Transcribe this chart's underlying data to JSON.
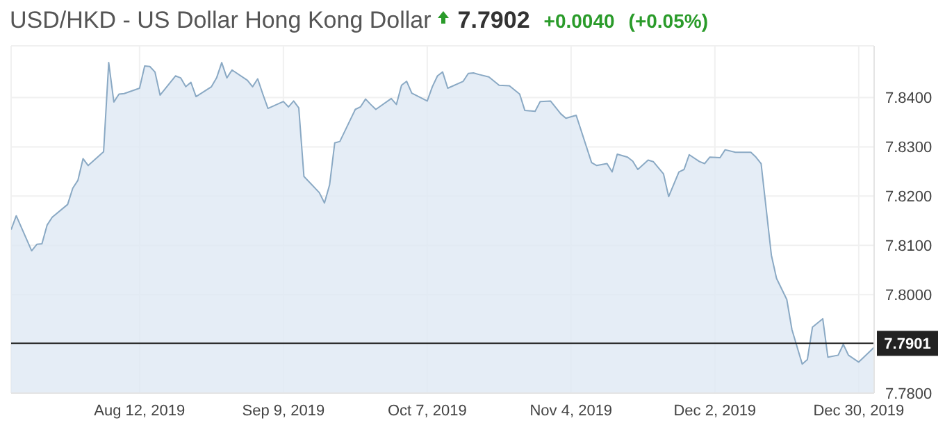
{
  "chart_data": {
    "type": "area",
    "title": "USD/HKD - US Dollar Hong Kong Dollar",
    "annotations": [
      "7.7902",
      "+0.0040",
      "(+0.05%)"
    ],
    "x": [
      "2019-07-18",
      "2019-07-19",
      "2019-07-22",
      "2019-07-23",
      "2019-07-24",
      "2019-07-25",
      "2019-07-26",
      "2019-07-29",
      "2019-07-30",
      "2019-07-31",
      "2019-08-01",
      "2019-08-02",
      "2019-08-05",
      "2019-08-06",
      "2019-08-07",
      "2019-08-08",
      "2019-08-09",
      "2019-08-12",
      "2019-08-13",
      "2019-08-14",
      "2019-08-15",
      "2019-08-16",
      "2019-08-19",
      "2019-08-20",
      "2019-08-21",
      "2019-08-22",
      "2019-08-23",
      "2019-08-26",
      "2019-08-27",
      "2019-08-28",
      "2019-08-29",
      "2019-08-30",
      "2019-09-02",
      "2019-09-03",
      "2019-09-04",
      "2019-09-05",
      "2019-09-06",
      "2019-09-09",
      "2019-09-10",
      "2019-09-11",
      "2019-09-12",
      "2019-09-13",
      "2019-09-16",
      "2019-09-17",
      "2019-09-18",
      "2019-09-19",
      "2019-09-20",
      "2019-09-23",
      "2019-09-24",
      "2019-09-25",
      "2019-09-26",
      "2019-09-27",
      "2019-09-30",
      "2019-10-01",
      "2019-10-02",
      "2019-10-03",
      "2019-10-04",
      "2019-10-07",
      "2019-10-08",
      "2019-10-09",
      "2019-10-10",
      "2019-10-11",
      "2019-10-14",
      "2019-10-15",
      "2019-10-16",
      "2019-10-17",
      "2019-10-19",
      "2019-10-21",
      "2019-10-23",
      "2019-10-25",
      "2019-10-26",
      "2019-10-28",
      "2019-10-29",
      "2019-10-31",
      "2019-11-02",
      "2019-11-03",
      "2019-11-05",
      "2019-11-08",
      "2019-11-09",
      "2019-11-11",
      "2019-11-12",
      "2019-11-13",
      "2019-11-15",
      "2019-11-16",
      "2019-11-17",
      "2019-11-19",
      "2019-11-20",
      "2019-11-22",
      "2019-11-23",
      "2019-11-25",
      "2019-11-26",
      "2019-11-27",
      "2019-11-29",
      "2019-11-30",
      "2019-12-01",
      "2019-12-03",
      "2019-12-04",
      "2019-12-06",
      "2019-12-09",
      "2019-12-10",
      "2019-12-11",
      "2019-12-13",
      "2019-12-14",
      "2019-12-16",
      "2019-12-17",
      "2019-12-19",
      "2019-12-20",
      "2019-12-21",
      "2019-12-23",
      "2019-12-24",
      "2019-12-26",
      "2019-12-27",
      "2019-12-28",
      "2019-12-30",
      "2019-12-31",
      "2020-01-02"
    ],
    "series": [
      {
        "color": "#8aa9c4",
        "values": [
          7.8132,
          7.816,
          7.8089,
          7.8102,
          7.8103,
          7.8141,
          7.8157,
          7.8183,
          7.8216,
          7.8232,
          7.8276,
          7.8262,
          7.829,
          7.8471,
          7.8391,
          7.8407,
          7.8408,
          7.8419,
          7.8464,
          7.8463,
          7.8452,
          7.8405,
          7.8444,
          7.844,
          7.8422,
          7.8431,
          7.8402,
          7.8422,
          7.844,
          7.8471,
          7.844,
          7.8456,
          7.8435,
          7.8422,
          7.8438,
          7.8407,
          7.8378,
          7.8392,
          7.8381,
          7.8393,
          7.8379,
          7.824,
          7.8207,
          7.8186,
          7.8223,
          7.8308,
          7.8311,
          7.8376,
          7.8381,
          7.8397,
          7.8386,
          7.8376,
          7.8398,
          7.8386,
          7.8425,
          7.8433,
          7.8409,
          7.8393,
          7.8422,
          7.8444,
          7.8452,
          7.8419,
          7.8433,
          7.8449,
          7.845,
          7.8447,
          7.8442,
          7.8425,
          7.8424,
          7.8407,
          7.8374,
          7.8372,
          7.8392,
          7.8393,
          7.8367,
          7.8358,
          7.8364,
          7.8268,
          7.8262,
          7.8266,
          7.8249,
          7.8285,
          7.8279,
          7.8271,
          7.8254,
          7.8273,
          7.827,
          7.8245,
          7.8199,
          7.8249,
          7.8254,
          7.8284,
          7.827,
          7.8266,
          7.8279,
          7.8278,
          7.8294,
          7.8289,
          7.8289,
          7.8279,
          7.8266,
          7.808,
          7.8033,
          7.799,
          7.7929,
          7.7859,
          7.7868,
          7.7934,
          7.7951,
          7.7873,
          7.7877,
          7.7899,
          7.7877,
          7.7863,
          7.7873,
          7.7893
        ]
      }
    ],
    "xlim": [
      "2019-07-18",
      "2020-01-02"
    ],
    "xticks": [
      {
        "value": "2019-08-12",
        "label": "Aug 12, 2019"
      },
      {
        "value": "2019-09-09",
        "label": "Sep 9, 2019"
      },
      {
        "value": "2019-10-07",
        "label": "Oct 7, 2019"
      },
      {
        "value": "2019-11-04",
        "label": "Nov 4, 2019"
      },
      {
        "value": "2019-12-02",
        "label": "Dec 2, 2019"
      },
      {
        "value": "2019-12-30",
        "label": "Dec 30, 2019"
      }
    ],
    "ylim": [
      7.78,
      7.8505
    ],
    "yticks": [
      {
        "value": 7.78,
        "label": "7.7800"
      },
      {
        "value": 7.8,
        "label": "7.8000"
      },
      {
        "value": 7.81,
        "label": "7.8100"
      },
      {
        "value": 7.82,
        "label": "7.8200"
      },
      {
        "value": 7.83,
        "label": "7.8300"
      },
      {
        "value": 7.84,
        "label": "7.8400"
      }
    ],
    "ref_lines": [
      {
        "axis": "y",
        "value": 7.7901,
        "label": "7.7901",
        "color": "#222222"
      }
    ],
    "grid": true
  }
}
